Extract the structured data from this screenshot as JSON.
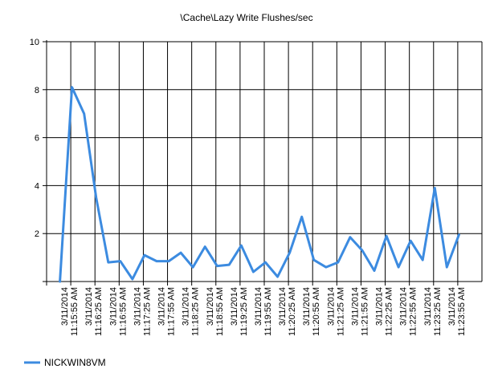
{
  "chart_data": {
    "type": "line",
    "title": "\\Cache\\Lazy Write Flushes/sec",
    "xlabel": "",
    "ylabel": "",
    "ylim": [
      0,
      10
    ],
    "yticks": [
      2,
      4,
      6,
      8,
      10
    ],
    "grid": true,
    "legend": "bottom-left",
    "series_color": "#3c8be0",
    "x_tick_labels": [
      [
        "3/11/2014",
        "11:15:55 AM"
      ],
      [
        "3/11/2014",
        "11:16:25 AM"
      ],
      [
        "3/11/2014",
        "11:16:55 AM"
      ],
      [
        "3/11/2014",
        "11:17:25 AM"
      ],
      [
        "3/11/2014",
        "11:17:55 AM"
      ],
      [
        "3/11/2014",
        "11:18:25 AM"
      ],
      [
        "3/11/2014",
        "11:18:55 AM"
      ],
      [
        "3/11/2014",
        "11:19:25 AM"
      ],
      [
        "3/11/2014",
        "11:19:55 AM"
      ],
      [
        "3/11/2014",
        "11:20:25 AM"
      ],
      [
        "3/11/2014",
        "11:20:55 AM"
      ],
      [
        "3/11/2014",
        "11:21:25 AM"
      ],
      [
        "3/11/2014",
        "11:21:55 AM"
      ],
      [
        "3/11/2014",
        "11:22:25 AM"
      ],
      [
        "3/11/2014",
        "11:22:55 AM"
      ],
      [
        "3/11/2014",
        "11:23:25 AM"
      ],
      [
        "3/11/2014",
        "11:23:55 AM"
      ]
    ],
    "series": [
      {
        "name": "NICKWIN8VM",
        "values": [
          0,
          8.1,
          7.0,
          3.5,
          0.8,
          0.85,
          0.1,
          1.1,
          0.85,
          0.85,
          1.2,
          0.6,
          1.45,
          0.65,
          0.7,
          1.5,
          0.4,
          0.8,
          0.2,
          1.2,
          2.7,
          0.9,
          0.6,
          0.8,
          1.85,
          1.3,
          0.45,
          1.9,
          0.6,
          1.7,
          0.9,
          3.9,
          0.6,
          1.95
        ]
      }
    ]
  }
}
